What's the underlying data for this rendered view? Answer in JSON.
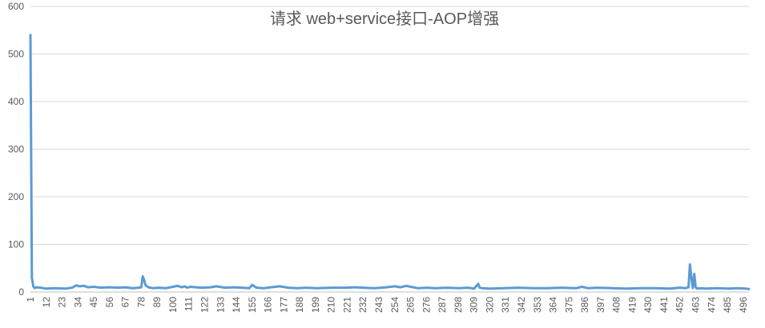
{
  "chart_data": {
    "type": "line",
    "title": "请求 web+service接口-AOP增强",
    "xlabel": "",
    "ylabel": "",
    "ylim": [
      0,
      600
    ],
    "yticks": [
      0,
      100,
      200,
      300,
      400,
      500,
      600
    ],
    "xlim": [
      1,
      500
    ],
    "xticks": [
      1,
      12,
      23,
      34,
      45,
      56,
      67,
      78,
      89,
      100,
      111,
      122,
      133,
      144,
      155,
      166,
      177,
      188,
      199,
      210,
      221,
      232,
      243,
      254,
      265,
      276,
      287,
      298,
      309,
      320,
      331,
      342,
      353,
      364,
      375,
      386,
      397,
      408,
      419,
      430,
      441,
      452,
      463,
      474,
      485,
      496
    ],
    "grid": true,
    "legend": "none",
    "series": [
      {
        "color": "#5b9bd5",
        "x": [
          1,
          2,
          3,
          4,
          5,
          8,
          12,
          18,
          25,
          30,
          33,
          35,
          38,
          41,
          45,
          50,
          56,
          62,
          67,
          72,
          76,
          78,
          79,
          80,
          81,
          83,
          86,
          90,
          95,
          100,
          103,
          106,
          108,
          110,
          112,
          116,
          120,
          126,
          130,
          136,
          142,
          148,
          153,
          155,
          158,
          163,
          168,
          174,
          180,
          186,
          192,
          200,
          210,
          220,
          226,
          232,
          240,
          248,
          254,
          258,
          262,
          265,
          270,
          276,
          282,
          290,
          298,
          305,
          309,
          312,
          313,
          315,
          320,
          330,
          340,
          350,
          360,
          370,
          380,
          384,
          388,
          395,
          405,
          415,
          425,
          435,
          445,
          452,
          456,
          458,
          459,
          460,
          461,
          462,
          463,
          464,
          465,
          466,
          467,
          470,
          478,
          486,
          492,
          498,
          500
        ],
        "y": [
          540,
          30,
          12,
          8,
          10,
          9,
          7,
          8,
          7,
          9,
          14,
          12,
          13,
          10,
          11,
          9,
          10,
          9,
          10,
          8,
          9,
          10,
          33,
          25,
          14,
          10,
          8,
          9,
          8,
          11,
          13,
          10,
          12,
          9,
          11,
          10,
          9,
          10,
          12,
          9,
          10,
          9,
          8,
          15,
          9,
          8,
          10,
          12,
          9,
          8,
          9,
          8,
          9,
          9,
          10,
          9,
          8,
          10,
          12,
          10,
          13,
          11,
          8,
          9,
          8,
          9,
          8,
          9,
          7,
          17,
          9,
          8,
          7,
          8,
          9,
          8,
          8,
          9,
          8,
          11,
          8,
          9,
          8,
          7,
          8,
          8,
          7,
          9,
          8,
          10,
          58,
          30,
          8,
          38,
          10,
          7,
          8,
          7,
          8,
          7,
          8,
          7,
          8,
          7,
          6
        ]
      }
    ]
  }
}
